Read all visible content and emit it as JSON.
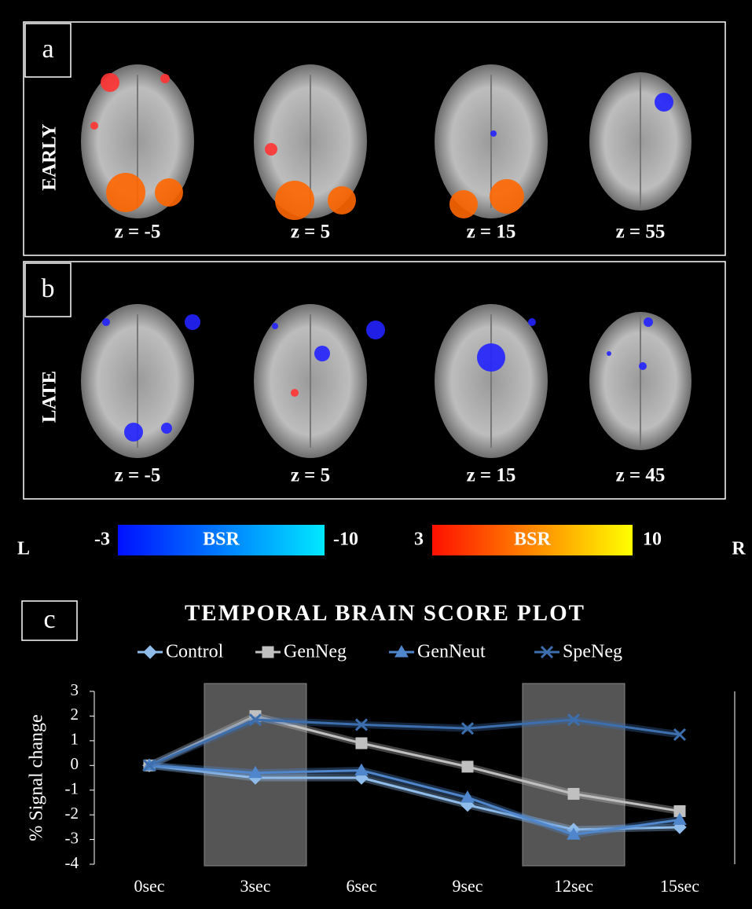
{
  "panels": [
    {
      "letter": "a",
      "label": "EARLY",
      "slices": [
        "z = -5",
        "z = 5",
        "z = 15",
        "z = 55"
      ]
    },
    {
      "letter": "b",
      "label": "LATE",
      "slices": [
        "z = -5",
        "z = 5",
        "z = 15",
        "z = 45"
      ]
    }
  ],
  "colorbars": [
    {
      "low": "-3",
      "name": "BSR",
      "high": "-10",
      "colors": [
        "#0010ff",
        "#00e8ff"
      ]
    },
    {
      "low": "3",
      "name": "BSR",
      "high": "10",
      "colors": [
        "#ff1000",
        "#ffff00"
      ]
    }
  ],
  "side_labels": {
    "left": "L",
    "right": "R"
  },
  "chart_data": {
    "type": "line",
    "panel_letter": "c",
    "title": "TEMPORAL BRAIN SCORE PLOT",
    "y_label": "% Signal change",
    "categories": [
      "0sec",
      "3sec",
      "6sec",
      "9sec",
      "12sec",
      "15sec"
    ],
    "shaded_categories": [
      1,
      4
    ],
    "ylim": [
      -4,
      3
    ],
    "yticks": [
      -4,
      -3,
      -2,
      -1,
      0,
      1,
      2,
      3
    ],
    "series": [
      {
        "name": "Control",
        "color": "#8fbcea",
        "marker": "diamond",
        "values": [
          0,
          -0.5,
          -0.5,
          -1.6,
          -2.6,
          -2.5
        ]
      },
      {
        "name": "GenNeg",
        "color": "#c0c0c0",
        "marker": "square",
        "values": [
          0,
          2.0,
          0.9,
          -0.05,
          -1.15,
          -1.85
        ]
      },
      {
        "name": "GenNeut",
        "color": "#4f86cc",
        "marker": "triangle",
        "values": [
          0,
          -0.3,
          -0.2,
          -1.3,
          -2.8,
          -2.2
        ]
      },
      {
        "name": "SpeNeg",
        "color": "#3d6ead",
        "marker": "x",
        "values": [
          0,
          1.85,
          1.65,
          1.5,
          1.85,
          1.25
        ]
      }
    ]
  }
}
